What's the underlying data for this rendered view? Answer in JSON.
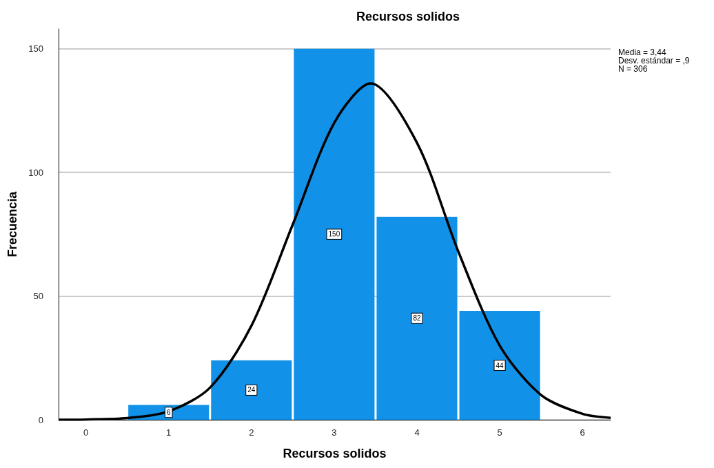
{
  "chart_data": {
    "type": "histogram",
    "title": "Recursos solidos",
    "xlabel": "Recursos solidos",
    "ylabel": "Frecuencia",
    "bins": [
      0.5,
      1.5,
      2.5,
      3.5,
      4.5,
      5.5
    ],
    "values": [
      6,
      24,
      150,
      82,
      44
    ],
    "color": "#1192e8",
    "value_labels": [
      "6",
      "24",
      "150",
      "82",
      "44"
    ],
    "series": [
      {
        "type": "line",
        "color": "#000000",
        "x": [
          -0.33,
          0,
          0.5,
          1,
          1.5,
          2,
          2.5,
          3,
          3.44,
          4,
          4.5,
          5,
          5.5,
          6,
          6.34
        ],
        "values": [
          0,
          0.1,
          0.7,
          3.4,
          13,
          38,
          79,
          120,
          136,
          112,
          68,
          30,
          10,
          2.4,
          0.8
        ]
      }
    ],
    "xlim": [
      -0.33,
      6.34
    ],
    "xticks": [
      0,
      1,
      2,
      3,
      4,
      5,
      6
    ],
    "ylim": [
      0,
      158
    ],
    "yticks": [
      0,
      50,
      100,
      150
    ],
    "grid": "y",
    "marker": "none",
    "annotations": [
      "Media = 3,44",
      "Desv. estándar = ,9",
      "N = 306"
    ]
  }
}
